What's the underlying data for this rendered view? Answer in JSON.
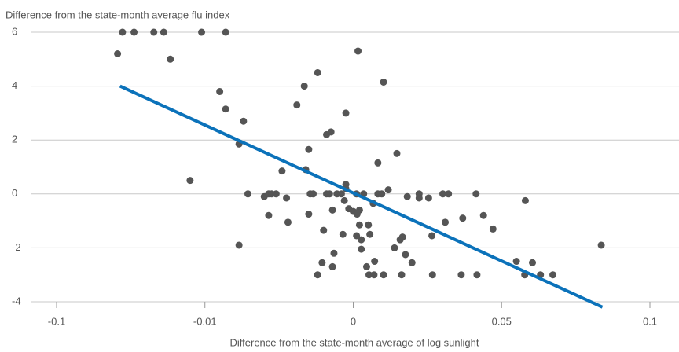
{
  "chart_data": {
    "type": "scatter",
    "y_label": "Difference from the state-month average flu index",
    "x_label": "Difference from the state-month average of log sunlight",
    "color": "#555555",
    "x": [
      -0.06,
      -0.053,
      -0.041,
      -0.035,
      -0.012,
      -0.0086,
      -0.063,
      -0.031,
      -0.009,
      -0.0086,
      -0.0074,
      -0.0077,
      -0.019,
      -0.0077,
      -0.0071,
      -0.006,
      -0.0057,
      -0.0055,
      -0.0052,
      -0.0057,
      -0.0048,
      -0.0045,
      -0.0044,
      -0.0038,
      -0.0033,
      -0.0024,
      -0.0032,
      -0.003,
      -0.0029,
      -0.0027,
      -0.003,
      -0.0018,
      -0.0015,
      -0.0018,
      -0.0016,
      -0.0014,
      -0.0011,
      -0.0008,
      -0.0005,
      -0.0005,
      -0.0005,
      -0.0006,
      -0.0003,
      0,
      0.0013,
      0.0021,
      0.0011,
      0.0035,
      0.0016,
      0.0102,
      0.0011,
      0.0027,
      0.0021,
      0.0051,
      0.0056,
      0.0067,
      0.0083,
      0.0083,
      0.0096,
      0.0118,
      0.0147,
      0.0166,
      0.0158,
      -0.0007,
      -0.002,
      -0.0013,
      -0.0021,
      -0.0014,
      -0.0024,
      0.0027,
      0.0045,
      0.0053,
      0.007,
      0.0072,
      0.0102,
      0.0139,
      0.0163,
      0.0176,
      0.0198,
      0.0182,
      0.0222,
      0.0222,
      0.0254,
      0.0265,
      0.0267,
      0.0302,
      0.0321,
      0.031,
      0.0364,
      0.0369,
      0.0414,
      0.0417,
      0.0439,
      0.0471,
      0.058,
      0.055,
      0.0578,
      0.0604,
      0.0631,
      0.0673,
      0.0836
    ],
    "y": [
      6,
      6,
      6,
      6,
      6,
      6,
      5.2,
      5.0,
      3.8,
      3.15,
      2.7,
      1.85,
      0.5,
      -1.9,
      0,
      -0.1,
      0,
      0,
      0,
      -0.8,
      0.85,
      -0.15,
      -1.05,
      3.3,
      4.0,
      4.5,
      0.9,
      1.65,
      0,
      0,
      -0.75,
      2.2,
      2.3,
      0,
      0,
      -0.6,
      0,
      0,
      3.0,
      0.35,
      0.2,
      -0.25,
      -0.55,
      -0.65,
      -0.75,
      -0.6,
      0,
      0,
      5.3,
      4.15,
      -1.55,
      -1.7,
      -1.15,
      -1.15,
      -1.5,
      -0.35,
      1.15,
      0,
      0,
      0.15,
      1.5,
      -1.6,
      -1.7,
      -1.5,
      -1.35,
      -2.2,
      -2.55,
      -2.7,
      -3,
      -2.05,
      -2.7,
      -3,
      -3,
      -2.5,
      -3,
      -2.0,
      -3,
      -2.25,
      -2.55,
      -0.1,
      0,
      -0.15,
      -0.15,
      -1.55,
      -3,
      0,
      0,
      -1.05,
      -3,
      -0.9,
      0,
      -3,
      -0.8,
      -1.3,
      -0.25,
      -2.5,
      -3,
      -2.55,
      -3,
      -3,
      -1.9
    ],
    "fit_line": {
      "color": "#0b72ba",
      "x": [
        -0.0615,
        0.084
      ],
      "y": [
        4.0,
        -4.2
      ]
    },
    "xlim": [
      -0.1,
      0.1
    ],
    "xticks": [
      -0.1,
      -0.01,
      0,
      0.05,
      0.1
    ],
    "ylim": [
      -4,
      6
    ],
    "yticks": [
      -4,
      -2,
      0,
      2,
      4,
      6
    ],
    "grid": true
  }
}
